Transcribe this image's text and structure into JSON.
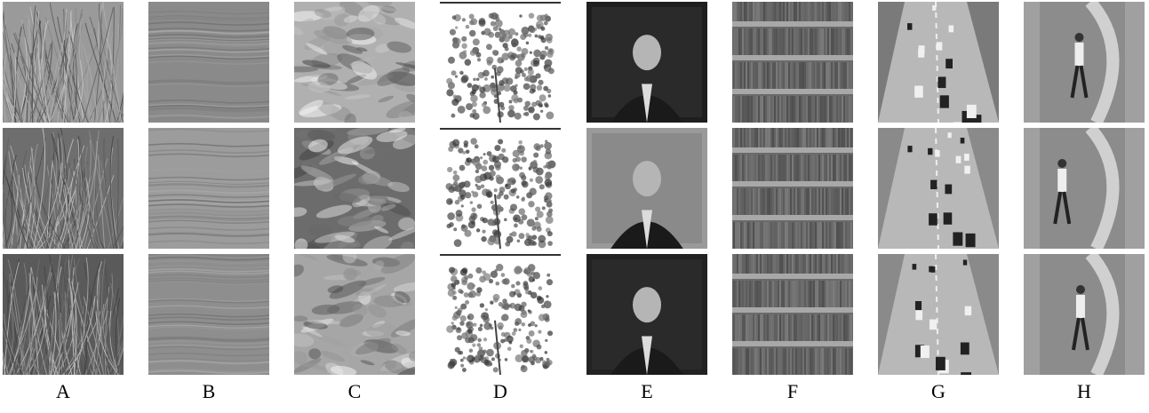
{
  "columns": [
    {
      "label": "A",
      "texture": "grass",
      "colors": [
        "#9a9a9a",
        "#6e6e6e",
        "#5a5a5a"
      ]
    },
    {
      "label": "B",
      "texture": "water-ripples",
      "colors": [
        "#8a8a8a",
        "#9c9c9c",
        "#8e8e8e"
      ]
    },
    {
      "label": "C",
      "texture": "sea-waves",
      "colors": [
        "#b0b0b0",
        "#6c6c6c",
        "#a6a6a6"
      ]
    },
    {
      "label": "D",
      "texture": "tree-foliage",
      "colors": [
        "#ffffff",
        "#ffffff",
        "#ffffff"
      ]
    },
    {
      "label": "E",
      "texture": "news-anchor",
      "colors": [
        "#1e1e1e",
        "#9a9a9a",
        "#222222"
      ]
    },
    {
      "label": "F",
      "texture": "escalator",
      "colors": [
        "#6a6a6a",
        "#6a6a6a",
        "#6a6a6a"
      ]
    },
    {
      "label": "G",
      "texture": "highway-traffic",
      "colors": [
        "#7a7a7a",
        "#8a8a8a",
        "#8a8a8a"
      ]
    },
    {
      "label": "H",
      "texture": "person-walking",
      "colors": [
        "#8c8c8c",
        "#8c8c8c",
        "#8c8c8c"
      ]
    }
  ]
}
